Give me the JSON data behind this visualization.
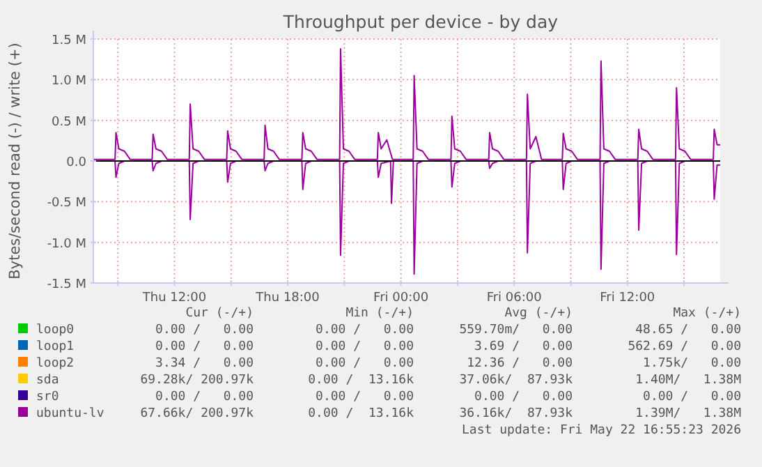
{
  "chart_data": {
    "type": "line",
    "title": "Throughput per device - by day",
    "ylabel": "Bytes/second read (-) / write (+)",
    "xlim": [
      "2026-05-21T07:42",
      "2026-05-22T16:55"
    ],
    "xticks": [
      {
        "value": "2026-05-21T09:00",
        "label": null
      },
      {
        "value": "2026-05-21T12:00",
        "label": "Thu 12:00"
      },
      {
        "value": "2026-05-21T15:00",
        "label": null
      },
      {
        "value": "2026-05-21T18:00",
        "label": "Thu 18:00"
      },
      {
        "value": "2026-05-21T21:00",
        "label": null
      },
      {
        "value": "2026-05-22T00:00",
        "label": "Fri 00:00"
      },
      {
        "value": "2026-05-22T03:00",
        "label": null
      },
      {
        "value": "2026-05-22T06:00",
        "label": "Fri 06:00"
      },
      {
        "value": "2026-05-22T09:00",
        "label": null
      },
      {
        "value": "2026-05-22T12:00",
        "label": "Fri 12:00"
      },
      {
        "value": "2026-05-22T15:00",
        "label": null
      }
    ],
    "ylim": [
      -1500000,
      1500000
    ],
    "yticks": [
      {
        "value": -1500000,
        "label": "-1.5 M"
      },
      {
        "value": -1000000,
        "label": "-1.0 M"
      },
      {
        "value": -500000,
        "label": "-0.5 M"
      },
      {
        "value": 0,
        "label": "0.0"
      },
      {
        "value": 500000,
        "label": "0.5 M"
      },
      {
        "value": 1000000,
        "label": "1.0 M"
      },
      {
        "value": 1500000,
        "label": "1.5 M"
      }
    ],
    "grid": true,
    "legend": "bottom left",
    "marker": "none",
    "line_style": "solid",
    "ref_lines": [
      {
        "axis": "y",
        "value": 0,
        "color": "#000000"
      }
    ],
    "x": [
      "2026-05-21T07:42",
      "2026-05-21T08:51",
      "2026-05-21T08:54",
      "2026-05-21T09:03",
      "2026-05-21T09:21",
      "2026-05-21T09:39",
      "2026-05-21T10:49",
      "2026-05-21T10:52",
      "2026-05-21T11:01",
      "2026-05-21T11:19",
      "2026-05-21T11:37",
      "2026-05-21T12:47",
      "2026-05-21T12:50",
      "2026-05-21T12:59",
      "2026-05-21T13:17",
      "2026-05-21T13:35",
      "2026-05-21T14:46",
      "2026-05-21T14:49",
      "2026-05-21T14:58",
      "2026-05-21T15:16",
      "2026-05-21T15:34",
      "2026-05-21T16:45",
      "2026-05-21T16:48",
      "2026-05-21T16:57",
      "2026-05-21T17:15",
      "2026-05-21T17:33",
      "2026-05-21T18:45",
      "2026-05-21T18:48",
      "2026-05-21T18:57",
      "2026-05-21T19:15",
      "2026-05-21T19:33",
      "2026-05-21T20:45",
      "2026-05-21T20:48",
      "2026-05-21T20:57",
      "2026-05-21T21:15",
      "2026-05-21T21:33",
      "2026-05-21T22:45",
      "2026-05-21T22:48",
      "2026-05-21T22:57",
      "2026-05-21T23:15",
      "2026-05-21T23:33",
      "2026-05-22T00:39",
      "2026-05-22T00:42",
      "2026-05-22T00:51",
      "2026-05-22T01:09",
      "2026-05-22T01:27",
      "2026-05-22T02:39",
      "2026-05-22T02:42",
      "2026-05-22T02:51",
      "2026-05-22T03:09",
      "2026-05-22T03:27",
      "2026-05-22T04:39",
      "2026-05-22T04:42",
      "2026-05-22T04:51",
      "2026-05-22T05:09",
      "2026-05-22T05:27",
      "2026-05-22T06:39",
      "2026-05-22T06:42",
      "2026-05-22T06:51",
      "2026-05-22T07:09",
      "2026-05-22T07:27",
      "2026-05-22T08:33",
      "2026-05-22T08:36",
      "2026-05-22T08:45",
      "2026-05-22T09:03",
      "2026-05-22T09:21",
      "2026-05-22T10:33",
      "2026-05-22T10:36",
      "2026-05-22T10:45",
      "2026-05-22T11:03",
      "2026-05-22T11:21",
      "2026-05-22T12:33",
      "2026-05-22T12:36",
      "2026-05-22T12:45",
      "2026-05-22T13:03",
      "2026-05-22T13:21",
      "2026-05-22T14:33",
      "2026-05-22T14:36",
      "2026-05-22T14:45",
      "2026-05-22T15:03",
      "2026-05-22T15:21",
      "2026-05-22T16:33",
      "2026-05-22T16:36",
      "2026-05-22T16:45",
      "2026-05-22T16:55"
    ],
    "series": [
      {
        "name": "loop0",
        "color": "#00cc00",
        "values": [
          null,
          null,
          null,
          null,
          null,
          null,
          null,
          null,
          null,
          null,
          null,
          null,
          null,
          null,
          null,
          null,
          null,
          null,
          null,
          null,
          null,
          null,
          null,
          null,
          null,
          null,
          null,
          null,
          null,
          null,
          null,
          null,
          null,
          null,
          null,
          null,
          null,
          null,
          null,
          null,
          null,
          null,
          null,
          null,
          null,
          null,
          null,
          null,
          null,
          null,
          null,
          null,
          null,
          null,
          null,
          null,
          null,
          null,
          null,
          null,
          null,
          null,
          null,
          null,
          null,
          null,
          null,
          null,
          null,
          null,
          null,
          null,
          null,
          null,
          null,
          null,
          null,
          null,
          null,
          null,
          null,
          null,
          null,
          null,
          null
        ]
      },
      {
        "name": "loop1",
        "color": "#0066b3",
        "values": [
          null,
          null,
          null,
          null,
          null,
          null,
          null,
          null,
          null,
          null,
          null,
          null,
          null,
          null,
          null,
          null,
          null,
          null,
          null,
          null,
          null,
          null,
          null,
          null,
          null,
          null,
          null,
          null,
          null,
          null,
          null,
          null,
          null,
          null,
          null,
          null,
          null,
          null,
          null,
          null,
          null,
          null,
          null,
          null,
          null,
          null,
          null,
          null,
          null,
          null,
          null,
          null,
          null,
          null,
          null,
          null,
          null,
          null,
          null,
          null,
          null,
          null,
          null,
          null,
          null,
          null,
          null,
          null,
          null,
          null,
          null,
          null,
          null,
          null,
          null,
          null,
          null,
          null,
          null,
          null,
          null,
          null,
          null,
          null,
          null
        ]
      },
      {
        "name": "loop2",
        "color": "#ff8000",
        "values": [
          null,
          null,
          null,
          null,
          null,
          null,
          null,
          null,
          null,
          null,
          null,
          null,
          null,
          null,
          null,
          null,
          null,
          null,
          null,
          null,
          null,
          null,
          null,
          null,
          null,
          null,
          null,
          null,
          null,
          null,
          null,
          null,
          null,
          null,
          null,
          null,
          null,
          null,
          null,
          null,
          null,
          null,
          null,
          null,
          null,
          null,
          null,
          null,
          null,
          null,
          null,
          null,
          null,
          null,
          null,
          null,
          null,
          null,
          null,
          null,
          null,
          null,
          null,
          null,
          null,
          null,
          null,
          null,
          null,
          null,
          null,
          null,
          null,
          null,
          null,
          null,
          null,
          null,
          null,
          null,
          null,
          null,
          null,
          null,
          null
        ]
      },
      {
        "name": "sda",
        "color": "#ffcc00",
        "values": [
          null,
          null,
          null,
          null,
          null,
          null,
          null,
          null,
          null,
          null,
          null,
          null,
          null,
          null,
          null,
          null,
          null,
          null,
          null,
          null,
          null,
          null,
          null,
          null,
          null,
          null,
          null,
          null,
          null,
          null,
          null,
          null,
          null,
          null,
          null,
          null,
          null,
          null,
          null,
          null,
          null,
          null,
          null,
          null,
          null,
          null,
          null,
          null,
          null,
          null,
          null,
          null,
          null,
          null,
          null,
          null,
          null,
          null,
          null,
          null,
          null,
          null,
          null,
          null,
          null,
          null,
          null,
          null,
          null,
          null,
          null,
          null,
          null,
          null,
          null,
          null,
          null,
          null,
          null,
          null,
          null,
          null,
          null,
          null,
          null
        ]
      },
      {
        "name": "sr0",
        "color": "#330099",
        "values": [
          null,
          null,
          null,
          null,
          null,
          null,
          null,
          null,
          null,
          null,
          null,
          null,
          null,
          null,
          null,
          null,
          null,
          null,
          null,
          null,
          null,
          null,
          null,
          null,
          null,
          null,
          null,
          null,
          null,
          null,
          null,
          null,
          null,
          null,
          null,
          null,
          null,
          null,
          null,
          null,
          null,
          null,
          null,
          null,
          null,
          null,
          null,
          null,
          null,
          null,
          null,
          null,
          null,
          null,
          null,
          null,
          null,
          null,
          null,
          null,
          null,
          null,
          null,
          null,
          null,
          null,
          null,
          null,
          null,
          null,
          null,
          null,
          null,
          null,
          null,
          null,
          null,
          null,
          null,
          null,
          null,
          null,
          null,
          null,
          null
        ]
      },
      {
        "name": "ubuntu-lv",
        "color": "#990099",
        "values": [
          20000,
          20000,
          350000,
          150000,
          120000,
          20000,
          20000,
          330000,
          150000,
          120000,
          20000,
          20000,
          700000,
          150000,
          120000,
          20000,
          20000,
          370000,
          150000,
          120000,
          20000,
          20000,
          440000,
          150000,
          120000,
          20000,
          20000,
          350000,
          150000,
          120000,
          20000,
          20000,
          1380000,
          150000,
          120000,
          20000,
          20000,
          350000,
          150000,
          260000,
          20000,
          20000,
          1050000,
          150000,
          120000,
          20000,
          20000,
          550000,
          150000,
          120000,
          20000,
          20000,
          350000,
          150000,
          120000,
          20000,
          20000,
          820000,
          150000,
          300000,
          20000,
          20000,
          340000,
          150000,
          120000,
          20000,
          20000,
          1230000,
          150000,
          120000,
          20000,
          20000,
          390000,
          150000,
          120000,
          20000,
          20000,
          900000,
          150000,
          120000,
          20000,
          20000,
          390000,
          200000,
          200000
        ]
      },
      {
        "color": "#990099",
        "x": [
          "2026-05-21T07:42",
          "2026-05-21T08:51",
          "2026-05-21T08:54",
          "2026-05-21T09:03",
          "2026-05-21T09:21",
          "2026-05-21T10:49",
          "2026-05-21T10:52",
          "2026-05-21T11:01",
          "2026-05-21T11:19",
          "2026-05-21T12:47",
          "2026-05-21T12:50",
          "2026-05-21T12:59",
          "2026-05-21T13:17",
          "2026-05-21T14:46",
          "2026-05-21T14:49",
          "2026-05-21T14:58",
          "2026-05-21T15:16",
          "2026-05-21T16:45",
          "2026-05-21T16:48",
          "2026-05-21T16:57",
          "2026-05-21T17:15",
          "2026-05-21T18:45",
          "2026-05-21T18:48",
          "2026-05-21T18:57",
          "2026-05-21T19:15",
          "2026-05-21T20:45",
          "2026-05-21T20:48",
          "2026-05-21T20:57",
          "2026-05-21T21:15",
          "2026-05-21T22:45",
          "2026-05-21T22:48",
          "2026-05-21T22:57",
          "2026-05-21T23:27",
          "2026-05-21T23:30",
          "2026-05-21T23:36",
          "2026-05-22T00:39",
          "2026-05-22T00:42",
          "2026-05-22T00:51",
          "2026-05-22T01:09",
          "2026-05-22T02:39",
          "2026-05-22T02:42",
          "2026-05-22T02:51",
          "2026-05-22T03:09",
          "2026-05-22T04:39",
          "2026-05-22T04:42",
          "2026-05-22T04:51",
          "2026-05-22T05:09",
          "2026-05-22T06:39",
          "2026-05-22T06:42",
          "2026-05-22T06:51",
          "2026-05-22T07:09",
          "2026-05-22T08:33",
          "2026-05-22T08:36",
          "2026-05-22T08:45",
          "2026-05-22T09:03",
          "2026-05-22T10:33",
          "2026-05-22T10:36",
          "2026-05-22T10:45",
          "2026-05-22T11:03",
          "2026-05-22T12:33",
          "2026-05-22T12:36",
          "2026-05-22T12:45",
          "2026-05-22T13:03",
          "2026-05-22T14:33",
          "2026-05-22T14:36",
          "2026-05-22T14:45",
          "2026-05-22T15:03",
          "2026-05-22T16:33",
          "2026-05-22T16:36",
          "2026-05-22T16:45",
          "2026-05-22T16:55"
        ],
        "values": [
          0,
          0,
          -200000,
          -30000,
          0,
          0,
          -120000,
          -30000,
          0,
          0,
          -720000,
          -30000,
          0,
          0,
          -260000,
          -30000,
          0,
          0,
          -120000,
          -30000,
          0,
          0,
          -350000,
          -30000,
          0,
          0,
          -1160000,
          -30000,
          0,
          0,
          -200000,
          -30000,
          0,
          -520000,
          0,
          0,
          -1390000,
          -30000,
          0,
          0,
          -320000,
          -30000,
          0,
          0,
          -90000,
          -30000,
          0,
          0,
          -1130000,
          -30000,
          0,
          0,
          -350000,
          -30000,
          0,
          0,
          -1330000,
          -30000,
          0,
          0,
          -850000,
          -30000,
          0,
          0,
          -1150000,
          -30000,
          0,
          0,
          -470000,
          -50000,
          -50000
        ]
      }
    ],
    "annotations": [
      "Cur (-/+)",
      "Min (-/+)",
      "Avg (-/+)",
      "Max (-/+)",
      "0.00 /   0.00",
      "0.00 /   0.00",
      "559.70m/   0.00",
      "48.65 /   0.00",
      "0.00 /   0.00",
      "0.00 /   0.00",
      "3.69 /   0.00",
      "562.69 /   0.00",
      "3.34 /   0.00",
      "0.00 /   0.00",
      "12.36 /   0.00",
      "1.75k/   0.00",
      "69.28k/ 200.97k",
      "0.00 /  13.16k",
      "37.06k/  87.93k",
      "1.40M/   1.38M",
      "0.00 /   0.00",
      "0.00 /   0.00",
      "0.00 /   0.00",
      "0.00 /   0.00",
      "67.66k/ 200.97k",
      "0.00 /  13.16k",
      "36.16k/  87.93k",
      "1.39M/   1.38M",
      "Last update: Fri May 22 16:55:23 2026"
    ]
  }
}
